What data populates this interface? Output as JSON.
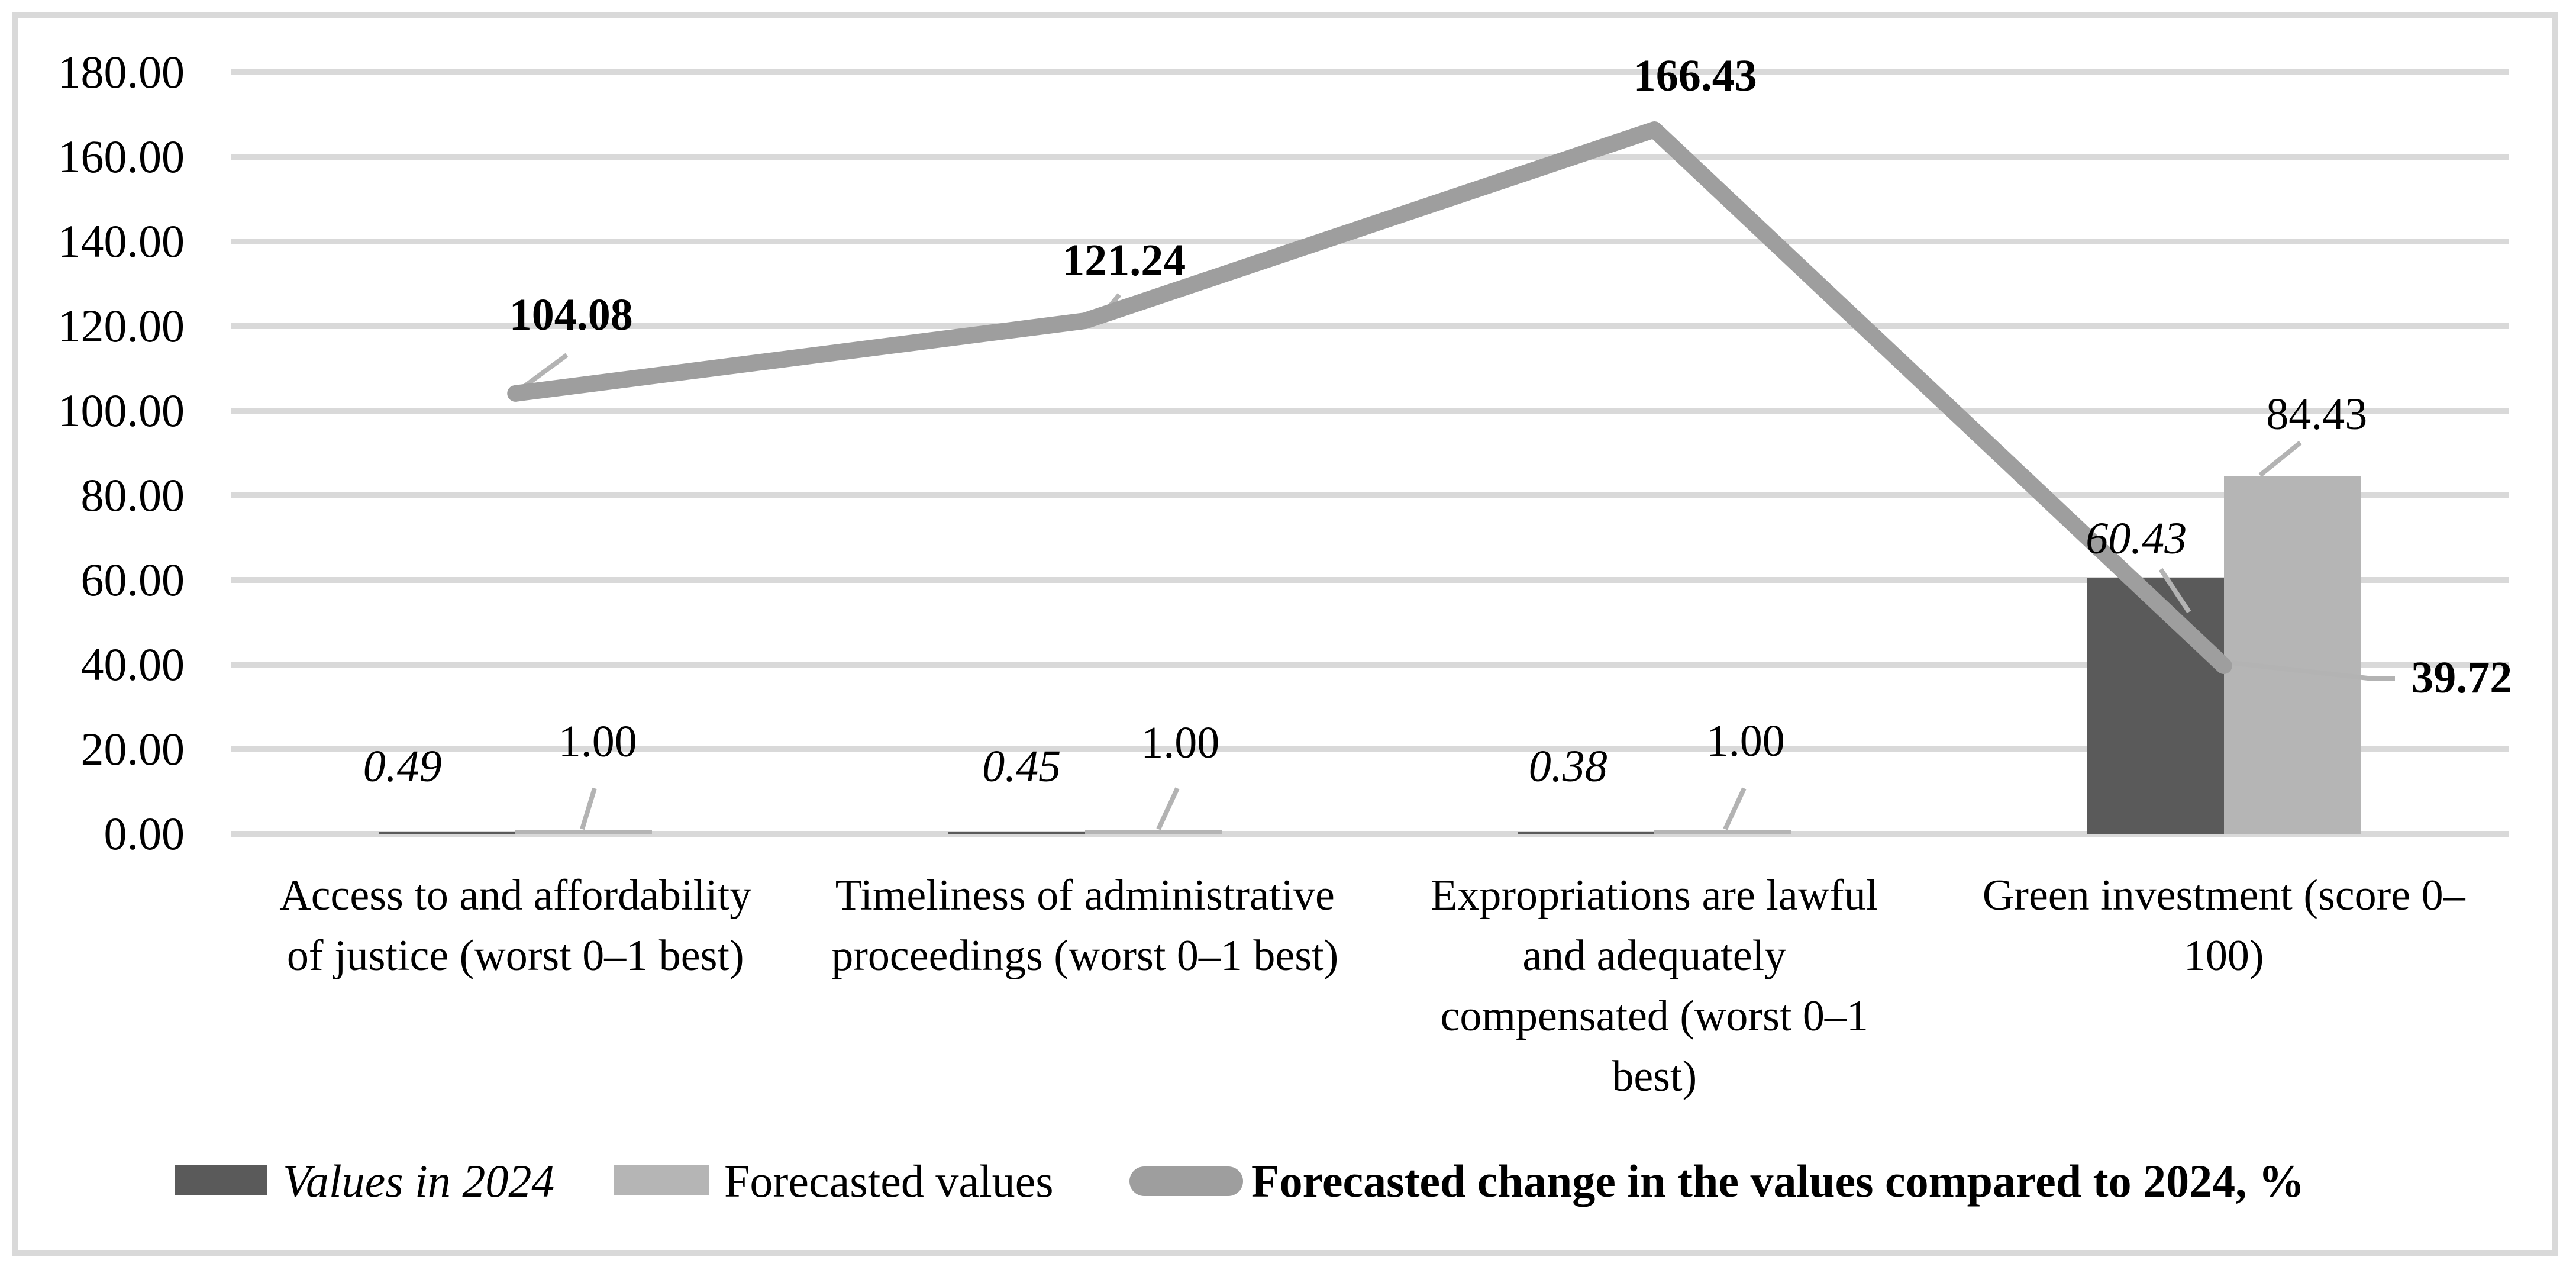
{
  "chart_data": {
    "type": "combo-bar-line",
    "title": "",
    "categories": [
      "Access to and affordability of justice (worst 0–1 best)",
      "Timeliness of administrative proceedings (worst 0–1 best)",
      "Expropriations are lawful and adequately compensated (worst 0–1 best)",
      "Green investment (score 0–100)"
    ],
    "categories_lines": [
      [
        "Access to and affordability",
        "of justice (worst 0–1 best)"
      ],
      [
        "Timeliness of administrative",
        "proceedings (worst 0–1 best)"
      ],
      [
        "Expropriations are lawful",
        "and adequately",
        "compensated (worst 0–1",
        "best)"
      ],
      [
        "Green investment (score 0–",
        "100)"
      ]
    ],
    "series": [
      {
        "name": "Values in 2024",
        "type": "bar",
        "color": "#5a5a5a",
        "label_style": "italic",
        "values": [
          0.49,
          0.45,
          0.38,
          60.43
        ],
        "labels": [
          "0.49",
          "0.45",
          "0.38",
          "60.43"
        ]
      },
      {
        "name": "Forecasted values",
        "type": "bar",
        "color": "#b5b5b5",
        "label_style": "normal",
        "values": [
          1.0,
          1.0,
          1.0,
          84.43
        ],
        "labels": [
          "1.00",
          "1.00",
          "1.00",
          "84.43"
        ]
      },
      {
        "name": "Forecasted change in the values compared to 2024, %",
        "type": "line",
        "color": "#9e9e9e",
        "label_style": "bold",
        "values": [
          104.08,
          121.24,
          166.43,
          39.72
        ],
        "labels": [
          "104.08",
          "121.24",
          "166.43",
          "39.72"
        ]
      }
    ],
    "ylim": [
      0,
      180
    ],
    "ytick_step": 20,
    "yticks": [
      "0.00",
      "20.00",
      "40.00",
      "60.00",
      "80.00",
      "100.00",
      "120.00",
      "140.00",
      "160.00",
      "180.00"
    ],
    "grid": true,
    "legend_position": "bottom",
    "colors": {
      "gridline": "#d9d9d9",
      "frame": "#d9d9d9",
      "leader_line": "#b3b3b3",
      "data_label": "#000000",
      "background": "#ffffff"
    }
  }
}
